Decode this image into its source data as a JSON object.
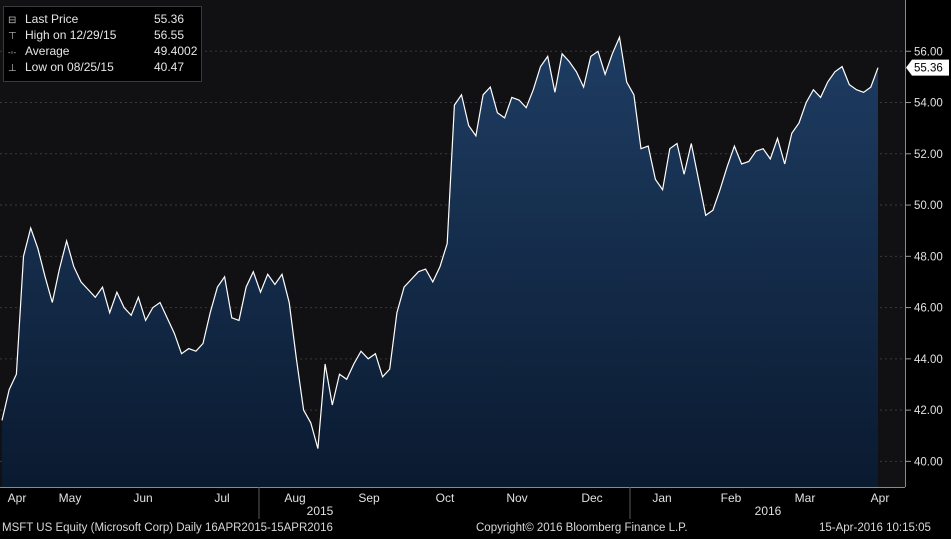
{
  "legend": {
    "rows": [
      {
        "glyph": "⊟",
        "label": "Last Price",
        "value": "55.36"
      },
      {
        "glyph": "⊤",
        "label": "High on 12/29/15",
        "value": "56.55"
      },
      {
        "glyph": "-◦-",
        "label": "Average",
        "value": "49.4002"
      },
      {
        "glyph": "⊥",
        "label": "Low on 08/25/15",
        "value": "40.47"
      }
    ]
  },
  "last_price_tag": "55.36",
  "footer": {
    "left": "MSFT US Equity (Microsoft Corp)  Daily 16APR2015-15APR2016",
    "center": "Copyright© 2016 Bloomberg Finance L.P.",
    "right": "15-Apr-2016 10:15:05"
  },
  "colors": {
    "background": "#000000",
    "plot_bg": "#111114",
    "line": "#ffffff",
    "fill_top": "#1e3d63",
    "fill_bottom": "#0a1a30",
    "grid": "#3a3a3a"
  },
  "chart_data": {
    "type": "area",
    "series": [
      {
        "x": [
          "Apr 16",
          "Apr 18",
          "Apr 20",
          "Apr 22",
          "Apr 24",
          "Apr 26",
          "Apr 29",
          "May 1",
          "May 4",
          "May 7",
          "May 10",
          "May 13",
          "May 16",
          "May 19",
          "May 22",
          "May 25",
          "May 28",
          "Jun 1",
          "Jun 4",
          "Jun 7",
          "Jun 10",
          "Jun 13",
          "Jun 16",
          "Jun 19",
          "Jun 22",
          "Jun 25",
          "Jun 28",
          "Jul 1",
          "Jul 4",
          "Jul 7",
          "Jul 10",
          "Jul 13",
          "Jul 16",
          "Jul 19",
          "Jul 22",
          "Jul 25",
          "Jul 28",
          "Aug 1",
          "Aug 4",
          "Aug 7",
          "Aug 10",
          "Aug 13",
          "Aug 16",
          "Aug 20",
          "Aug 25",
          "Aug 28",
          "Aug 31",
          "Sep 3",
          "Sep 7",
          "Sep 10",
          "Sep 13",
          "Sep 16",
          "Sep 19",
          "Sep 22",
          "Sep 25",
          "Sep 28",
          "Oct 1",
          "Oct 4",
          "Oct 7",
          "Oct 10",
          "Oct 13",
          "Oct 16",
          "Oct 19",
          "Oct 22",
          "Oct 23",
          "Oct 26",
          "Oct 29",
          "Nov 1",
          "Nov 4",
          "Nov 7",
          "Nov 10",
          "Nov 13",
          "Nov 16",
          "Nov 19",
          "Nov 22",
          "Nov 25",
          "Nov 28",
          "Dec 1",
          "Dec 4",
          "Dec 7",
          "Dec 10",
          "Dec 13",
          "Dec 16",
          "Dec 19",
          "Dec 22",
          "Dec 25",
          "Dec 29",
          "Jan 1",
          "Jan 4",
          "Jan 7",
          "Jan 10",
          "Jan 13",
          "Jan 16",
          "Jan 19",
          "Jan 22",
          "Jan 26",
          "Jan 29",
          "Feb 1",
          "Feb 4",
          "Feb 7",
          "Feb 10",
          "Feb 13",
          "Feb 16",
          "Feb 19",
          "Feb 22",
          "Feb 25",
          "Feb 28",
          "Mar 2",
          "Mar 5",
          "Mar 8",
          "Mar 11",
          "Mar 14",
          "Mar 17",
          "Mar 20",
          "Mar 23",
          "Mar 26",
          "Mar 29",
          "Apr 1",
          "Apr 4",
          "Apr 7",
          "Apr 10",
          "Apr 13",
          "Apr 15"
        ],
        "values": [
          41.6,
          42.8,
          43.4,
          48.0,
          49.1,
          48.3,
          47.2,
          46.2,
          47.5,
          48.6,
          47.6,
          47.0,
          46.7,
          46.4,
          46.8,
          45.8,
          46.6,
          46.0,
          45.7,
          46.4,
          45.5,
          46.0,
          46.2,
          45.6,
          45.0,
          44.2,
          44.4,
          44.3,
          44.6,
          45.8,
          46.8,
          47.2,
          45.6,
          45.5,
          46.8,
          47.4,
          46.6,
          47.3,
          46.9,
          47.3,
          46.2,
          44.0,
          42.0,
          41.5,
          40.5,
          43.8,
          42.2,
          43.4,
          43.2,
          43.8,
          44.3,
          44.0,
          44.2,
          43.3,
          43.6,
          45.8,
          46.8,
          47.1,
          47.4,
          47.5,
          47.0,
          47.6,
          48.5,
          53.9,
          54.3,
          53.1,
          52.7,
          54.3,
          54.6,
          53.6,
          53.4,
          54.2,
          54.1,
          53.8,
          54.5,
          55.4,
          55.8,
          54.4,
          55.9,
          55.6,
          55.2,
          54.6,
          55.8,
          56.0,
          55.1,
          55.9,
          56.55,
          54.8,
          54.3,
          52.2,
          52.3,
          51.0,
          50.6,
          52.2,
          52.4,
          51.2,
          52.4,
          51.0,
          49.6,
          49.8,
          50.6,
          51.5,
          52.3,
          51.6,
          51.7,
          52.1,
          52.2,
          51.8,
          52.6,
          51.6,
          52.8,
          53.2,
          54.0,
          54.5,
          54.2,
          54.8,
          55.2,
          55.4,
          54.7,
          54.5,
          54.4,
          54.6,
          55.36
        ]
      }
    ],
    "ylim": [
      39.0,
      58.0
    ],
    "y_ticks": [
      "40.00",
      "42.00",
      "44.00",
      "46.00",
      "48.00",
      "50.00",
      "52.00",
      "54.00",
      "56.00"
    ],
    "x_month_labels": [
      "Apr",
      "May",
      "Jun",
      "Jul",
      "Aug",
      "Sep",
      "Oct",
      "Nov",
      "Dec",
      "Jan",
      "Feb",
      "Mar",
      "Apr"
    ],
    "year_labels": [
      "2015",
      "2016"
    ],
    "grid": true,
    "y_axis_side": "right"
  }
}
